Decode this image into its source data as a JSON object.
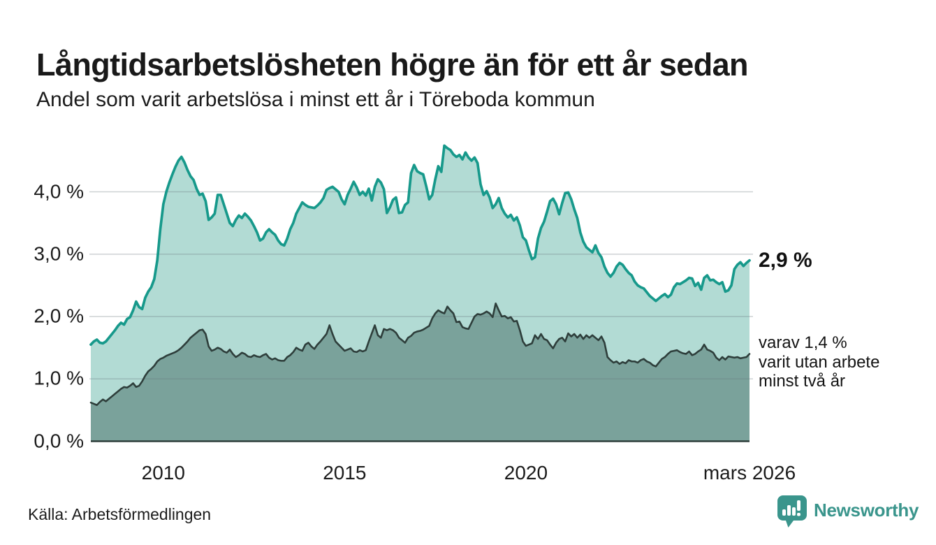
{
  "chart_data": {
    "type": "area",
    "title": "Långtidsarbetslösheten högre än för ett år sedan",
    "subtitle": "Andel som varit arbetslösa i minst ett år i Töreboda kommun",
    "unit": "%",
    "x_start": "2008-01",
    "x_end": "2026-03",
    "points_per_month": 1,
    "ylim": [
      0,
      4.8
    ],
    "grid": true,
    "colors": {
      "line_1yr": "#17998b",
      "fill_1yr": "#b2dbd4",
      "line_2yr": "#2e3e3b",
      "fill_2yr": "#7aa29b",
      "gridline": "rgba(104,116,120,0.32)",
      "axis": "#2e3e3b",
      "brand_teal": "#3a958c"
    },
    "y_ticks": [
      {
        "value": 0,
        "label": "0,0 %"
      },
      {
        "value": 1,
        "label": "1,0 %"
      },
      {
        "value": 2,
        "label": "2,0 %"
      },
      {
        "value": 3,
        "label": "3,0 %"
      },
      {
        "value": 4,
        "label": "4,0 %"
      }
    ],
    "x_ticks": [
      {
        "month_index": 24,
        "label": "2010"
      },
      {
        "month_index": 84,
        "label": "2015"
      },
      {
        "month_index": 144,
        "label": "2020"
      },
      {
        "month_index": 218,
        "label": "mars 2026"
      }
    ],
    "series": [
      {
        "name": "Andel arbetslösa minst ett år",
        "latest_value_pct": 2.9,
        "values": [
          1.55,
          1.6,
          1.63,
          1.58,
          1.57,
          1.6,
          1.66,
          1.72,
          1.78,
          1.85,
          1.9,
          1.87,
          1.96,
          1.99,
          2.1,
          2.24,
          2.15,
          2.12,
          2.3,
          2.4,
          2.47,
          2.6,
          2.9,
          3.4,
          3.8,
          4.0,
          4.15,
          4.28,
          4.4,
          4.5,
          4.56,
          4.47,
          4.35,
          4.25,
          4.19,
          4.05,
          3.95,
          3.97,
          3.85,
          3.55,
          3.59,
          3.65,
          3.95,
          3.95,
          3.8,
          3.65,
          3.5,
          3.45,
          3.55,
          3.62,
          3.58,
          3.65,
          3.6,
          3.54,
          3.45,
          3.35,
          3.22,
          3.25,
          3.35,
          3.4,
          3.35,
          3.31,
          3.22,
          3.16,
          3.14,
          3.25,
          3.4,
          3.5,
          3.65,
          3.74,
          3.83,
          3.79,
          3.76,
          3.75,
          3.74,
          3.78,
          3.83,
          3.9,
          4.03,
          4.06,
          4.08,
          4.04,
          4.0,
          3.88,
          3.8,
          3.95,
          4.05,
          4.16,
          4.07,
          3.95,
          4.0,
          3.94,
          4.05,
          3.86,
          4.08,
          4.2,
          4.15,
          4.04,
          3.66,
          3.75,
          3.87,
          3.91,
          3.66,
          3.67,
          3.79,
          3.83,
          4.3,
          4.43,
          4.33,
          4.3,
          4.28,
          4.09,
          3.88,
          3.95,
          4.2,
          4.41,
          4.32,
          4.74,
          4.7,
          4.67,
          4.6,
          4.56,
          4.59,
          4.52,
          4.63,
          4.55,
          4.5,
          4.55,
          4.46,
          4.12,
          3.95,
          4.01,
          3.91,
          3.74,
          3.8,
          3.9,
          3.74,
          3.65,
          3.59,
          3.63,
          3.54,
          3.59,
          3.46,
          3.27,
          3.22,
          3.06,
          2.92,
          2.95,
          3.25,
          3.42,
          3.52,
          3.68,
          3.85,
          3.89,
          3.8,
          3.64,
          3.82,
          3.98,
          3.99,
          3.88,
          3.72,
          3.58,
          3.35,
          3.2,
          3.11,
          3.07,
          3.03,
          3.14,
          3.02,
          2.95,
          2.8,
          2.7,
          2.64,
          2.7,
          2.8,
          2.86,
          2.83,
          2.76,
          2.7,
          2.66,
          2.56,
          2.5,
          2.47,
          2.45,
          2.39,
          2.33,
          2.29,
          2.25,
          2.29,
          2.33,
          2.36,
          2.31,
          2.35,
          2.47,
          2.53,
          2.52,
          2.55,
          2.58,
          2.62,
          2.61,
          2.49,
          2.54,
          2.43,
          2.62,
          2.66,
          2.58,
          2.59,
          2.55,
          2.52,
          2.55,
          2.4,
          2.42,
          2.5,
          2.76,
          2.83,
          2.87,
          2.81,
          2.86,
          2.9
        ]
      },
      {
        "name": "Andel arbetslösa minst två år",
        "latest_value_pct": 1.4,
        "values": [
          0.62,
          0.6,
          0.58,
          0.63,
          0.67,
          0.64,
          0.68,
          0.72,
          0.76,
          0.8,
          0.84,
          0.87,
          0.86,
          0.89,
          0.93,
          0.87,
          0.89,
          0.96,
          1.05,
          1.12,
          1.16,
          1.21,
          1.28,
          1.32,
          1.34,
          1.37,
          1.39,
          1.41,
          1.43,
          1.46,
          1.5,
          1.55,
          1.6,
          1.66,
          1.7,
          1.74,
          1.78,
          1.79,
          1.72,
          1.52,
          1.45,
          1.47,
          1.5,
          1.48,
          1.44,
          1.42,
          1.47,
          1.4,
          1.35,
          1.38,
          1.42,
          1.4,
          1.36,
          1.35,
          1.38,
          1.36,
          1.35,
          1.38,
          1.4,
          1.34,
          1.31,
          1.33,
          1.3,
          1.29,
          1.29,
          1.35,
          1.38,
          1.43,
          1.5,
          1.47,
          1.45,
          1.55,
          1.58,
          1.52,
          1.48,
          1.55,
          1.6,
          1.66,
          1.72,
          1.86,
          1.72,
          1.6,
          1.55,
          1.5,
          1.45,
          1.47,
          1.49,
          1.44,
          1.43,
          1.46,
          1.44,
          1.46,
          1.6,
          1.73,
          1.86,
          1.7,
          1.66,
          1.8,
          1.78,
          1.8,
          1.78,
          1.74,
          1.66,
          1.62,
          1.58,
          1.66,
          1.69,
          1.74,
          1.76,
          1.77,
          1.79,
          1.82,
          1.85,
          1.97,
          2.05,
          2.1,
          2.07,
          2.05,
          2.16,
          2.1,
          2.05,
          1.91,
          1.92,
          1.83,
          1.81,
          1.8,
          1.9,
          2.0,
          2.04,
          2.03,
          2.05,
          2.08,
          2.05,
          1.99,
          2.21,
          2.1,
          2.0,
          2.01,
          1.97,
          1.99,
          1.92,
          1.93,
          1.78,
          1.6,
          1.53,
          1.55,
          1.57,
          1.7,
          1.64,
          1.72,
          1.64,
          1.62,
          1.55,
          1.49,
          1.58,
          1.64,
          1.66,
          1.6,
          1.73,
          1.68,
          1.72,
          1.66,
          1.71,
          1.64,
          1.7,
          1.66,
          1.7,
          1.66,
          1.62,
          1.68,
          1.58,
          1.35,
          1.3,
          1.26,
          1.28,
          1.24,
          1.27,
          1.25,
          1.3,
          1.28,
          1.28,
          1.26,
          1.3,
          1.32,
          1.28,
          1.26,
          1.22,
          1.2,
          1.26,
          1.32,
          1.35,
          1.4,
          1.44,
          1.45,
          1.46,
          1.43,
          1.41,
          1.4,
          1.44,
          1.38,
          1.4,
          1.44,
          1.47,
          1.55,
          1.47,
          1.45,
          1.42,
          1.34,
          1.3,
          1.35,
          1.31,
          1.36,
          1.35,
          1.34,
          1.35,
          1.33,
          1.34,
          1.35,
          1.4
        ]
      }
    ],
    "annotations": {
      "latest_value": "2,9 %",
      "secondary_lines": [
        "varav 1,4 %",
        "varit utan arbete",
        "minst två år"
      ]
    }
  },
  "footer": {
    "source": "Källa: Arbetsförmedlingen",
    "brand": "Newsworthy"
  }
}
